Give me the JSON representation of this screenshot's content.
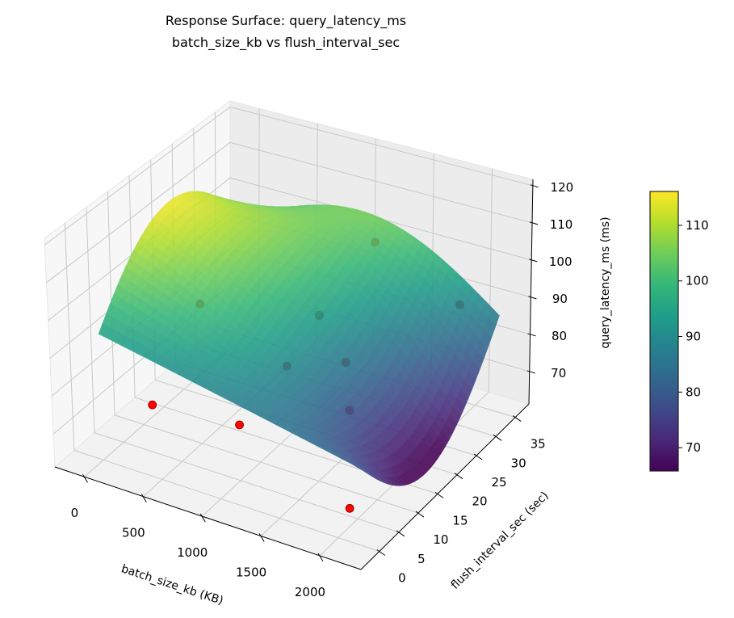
{
  "chart_data": {
    "type": "surface3d",
    "title": "Response Surface: query_latency_ms",
    "subtitle": "batch_size_kb vs flush_interval_sec",
    "xlabel": "batch_size_kb (KB)",
    "ylabel": "flush_interval_sec (sec)",
    "zlabel": "query_latency_ms (ms)",
    "x_ticks": [
      0,
      500,
      1000,
      1500,
      2000
    ],
    "y_ticks": [
      0,
      5,
      10,
      15,
      20,
      25,
      30,
      35
    ],
    "z_ticks": [
      70,
      80,
      90,
      100,
      110,
      120
    ],
    "xlim": [
      -250,
      2350
    ],
    "ylim": [
      -4.75,
      38.5
    ],
    "zlim": [
      61.3,
      121.7
    ],
    "surface_x_range": [
      0,
      2200
    ],
    "surface_y_range": [
      0,
      35
    ],
    "colormap": "viridis",
    "colorbar": {
      "range": [
        65.8,
        116.1
      ],
      "ticks": [
        70,
        80,
        90,
        100,
        110
      ]
    },
    "grid": true,
    "scatter_color": "#ff0000",
    "scatter_points": [
      {
        "x": 150,
        "y": 8,
        "z": 70
      },
      {
        "x": 1000,
        "y": 5,
        "z": 76
      },
      {
        "x": 1100,
        "y": 14,
        "z": 84
      },
      {
        "x": 2000,
        "y": 3,
        "z": 66
      },
      {
        "x": 150,
        "y": 20,
        "z": 86
      },
      {
        "x": 1100,
        "y": 22,
        "z": 90
      },
      {
        "x": 1500,
        "y": 17,
        "z": 86
      },
      {
        "x": 1700,
        "y": 12,
        "z": 80
      },
      {
        "x": 1300,
        "y": 30,
        "z": 104
      },
      {
        "x": 2200,
        "y": 25,
        "z": 100
      }
    ]
  }
}
